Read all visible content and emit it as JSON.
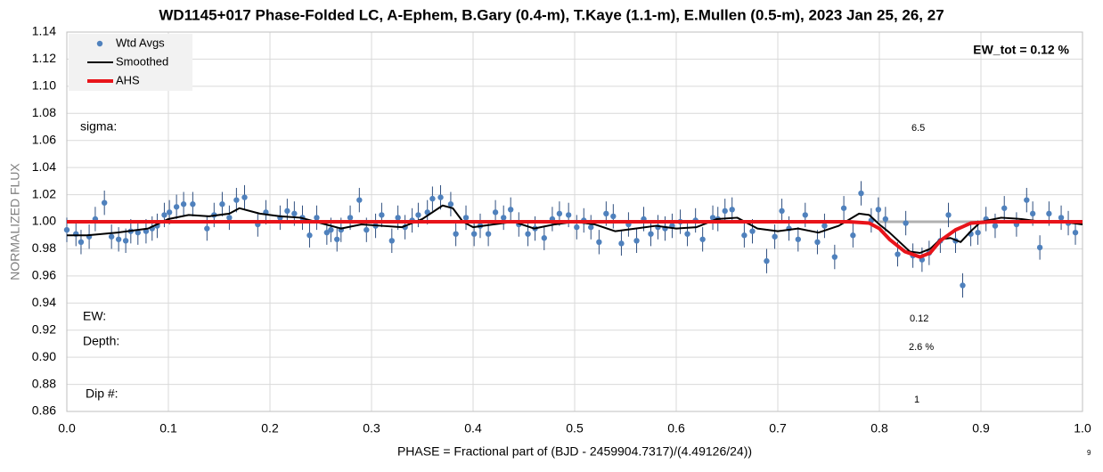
{
  "chart_data": {
    "type": "scatter",
    "title": "WD1145+017 Phase-Folded LC, A-Ephem, B.Gary (0.4-m), T.Kaye (1.1-m), E.Mullen (0.5-m), 2023 Jan 25, 26, 27",
    "xlabel": "PHASE = Fractional part of (BJD - 2459904.7317)/(4.49126/24))",
    "ylabel": "NORMALIZED FLUX",
    "xlim": [
      0,
      1
    ],
    "ylim": [
      0.86,
      1.14
    ],
    "xticks": [
      {
        "value": 0,
        "label": "0.0"
      },
      0.1,
      0.2,
      0.3,
      0.4,
      0.5,
      0.6,
      0.7,
      0.8,
      0.9,
      {
        "value": 1,
        "label": "1.0"
      }
    ],
    "yticks": [
      0.86,
      0.88,
      {
        "value": 0.9,
        "label": "0.90"
      },
      0.92,
      0.94,
      0.96,
      0.98,
      {
        "value": 1,
        "label": "1.00"
      },
      1.02,
      1.04,
      1.06,
      1.08,
      {
        "value": 1.1,
        "label": "1.10"
      },
      1.12,
      1.14
    ],
    "grid": true,
    "legend": "upper left",
    "baseline": 1,
    "annotations": {
      "ew_tot": "EW_tot = 0.12 %",
      "sigma": "sigma:",
      "sigma_value": "6.5",
      "ew": "EW:",
      "ew_value": "0.12",
      "depth": "Depth:",
      "depth_value": "2.6 %",
      "dip": "Dip #:",
      "dip_value": "1",
      "corner": "9"
    },
    "series": [
      {
        "name": "Wtd Avgs",
        "color": "#4f81bd",
        "error": 0.009,
        "x": [
          0.0,
          0.009,
          0.014,
          0.022,
          0.028,
          0.037,
          0.044,
          0.051,
          0.058,
          0.063,
          0.07,
          0.078,
          0.084,
          0.089,
          0.096,
          0.101,
          0.108,
          0.115,
          0.124,
          0.138,
          0.145,
          0.153,
          0.16,
          0.167,
          0.175,
          0.188,
          0.196,
          0.21,
          0.217,
          0.224,
          0.232,
          0.239,
          0.246,
          0.256,
          0.26,
          0.266,
          0.27,
          0.279,
          0.288,
          0.295,
          0.304,
          0.31,
          0.32,
          0.326,
          0.333,
          0.34,
          0.346,
          0.355,
          0.36,
          0.368,
          0.378,
          0.383,
          0.393,
          0.401,
          0.407,
          0.415,
          0.422,
          0.43,
          0.437,
          0.445,
          0.454,
          0.461,
          0.47,
          0.478,
          0.485,
          0.494,
          0.502,
          0.509,
          0.516,
          0.524,
          0.531,
          0.538,
          0.546,
          0.553,
          0.561,
          0.568,
          0.575,
          0.582,
          0.589,
          0.596,
          0.604,
          0.611,
          0.619,
          0.626,
          0.636,
          0.641,
          0.648,
          0.655,
          0.667,
          0.675,
          0.689,
          0.697,
          0.704,
          0.711,
          0.72,
          0.727,
          0.739,
          0.746,
          0.756,
          0.765,
          0.774,
          0.782,
          0.792,
          0.799,
          0.806,
          0.818,
          0.826,
          0.833,
          0.842,
          0.849,
          0.86,
          0.868,
          0.875,
          0.882,
          0.89,
          0.897,
          0.905,
          0.914,
          0.923,
          0.935,
          0.945,
          0.951,
          0.958,
          0.967,
          0.979,
          0.986,
          0.993
        ],
        "values": [
          0.994,
          0.991,
          0.985,
          0.989,
          1.002,
          1.014,
          0.989,
          0.987,
          0.986,
          0.993,
          0.992,
          0.993,
          0.995,
          0.997,
          1.005,
          1.007,
          1.011,
          1.013,
          1.013,
          0.995,
          1.005,
          1.013,
          1.003,
          1.016,
          1.018,
          0.998,
          1.007,
          1.003,
          1.008,
          1.006,
          1.003,
          0.99,
          1.003,
          0.992,
          0.994,
          0.987,
          0.994,
          1.003,
          1.016,
          0.994,
          0.997,
          1.005,
          0.986,
          1.003,
          0.996,
          1.001,
          1.005,
          1.007,
          1.017,
          1.018,
          1.013,
          0.991,
          1.003,
          0.991,
          0.997,
          0.991,
          1.007,
          1.003,
          1.009,
          0.998,
          0.991,
          0.995,
          0.988,
          1.002,
          1.006,
          1.005,
          0.996,
          1.001,
          0.996,
          0.985,
          1.006,
          1.004,
          0.984,
          0.998,
          0.986,
          1.002,
          0.991,
          0.996,
          0.995,
          0.997,
          1.0,
          0.991,
          1.001,
          0.987,
          1.003,
          1.002,
          1.008,
          1.009,
          0.99,
          0.993,
          0.971,
          0.989,
          1.008,
          0.995,
          0.987,
          1.005,
          0.985,
          0.997,
          0.974,
          1.01,
          0.99,
          1.021,
          1.001,
          1.009,
          1.002,
          0.976,
          0.999,
          0.975,
          0.972,
          0.977,
          0.986,
          1.005,
          0.986,
          0.953,
          0.991,
          0.992,
          1.002,
          0.997,
          1.01,
          0.998,
          1.016,
          1.006,
          0.981,
          1.006,
          1.003,
          0.999,
          0.992
        ]
      },
      {
        "name": "Smoothed",
        "color": "#000000",
        "line": true,
        "x": [
          0.0,
          0.02,
          0.05,
          0.08,
          0.1,
          0.12,
          0.14,
          0.16,
          0.17,
          0.19,
          0.21,
          0.23,
          0.25,
          0.27,
          0.29,
          0.31,
          0.33,
          0.35,
          0.37,
          0.38,
          0.39,
          0.4,
          0.42,
          0.44,
          0.46,
          0.48,
          0.5,
          0.52,
          0.54,
          0.56,
          0.58,
          0.6,
          0.62,
          0.64,
          0.66,
          0.68,
          0.7,
          0.72,
          0.74,
          0.76,
          0.78,
          0.79,
          0.8,
          0.81,
          0.82,
          0.83,
          0.84,
          0.85,
          0.86,
          0.87,
          0.88,
          0.89,
          0.9,
          0.92,
          0.94,
          0.96,
          0.98,
          1.0
        ],
        "values": [
          0.99,
          0.99,
          0.992,
          0.995,
          1.002,
          1.005,
          1.004,
          1.006,
          1.01,
          1.006,
          1.004,
          1.003,
          0.999,
          0.995,
          0.998,
          0.997,
          0.996,
          1.002,
          1.012,
          1.01,
          1.0,
          0.996,
          0.998,
          1.0,
          0.995,
          0.998,
          1.0,
          0.998,
          0.993,
          0.995,
          0.997,
          0.995,
          0.996,
          1.002,
          1.003,
          0.995,
          0.993,
          0.995,
          0.992,
          0.997,
          1.006,
          1.005,
          0.998,
          0.992,
          0.985,
          0.978,
          0.977,
          0.98,
          0.987,
          0.988,
          0.985,
          0.993,
          1.0,
          1.003,
          1.002,
          1.0,
          1.0,
          0.998
        ]
      },
      {
        "name": "AHS",
        "color": "#e8141a",
        "line": true,
        "width": 4,
        "x": [
          0.0,
          0.77,
          0.79,
          0.8,
          0.81,
          0.825,
          0.84,
          0.85,
          0.86,
          0.875,
          0.89,
          0.91,
          1.0
        ],
        "values": [
          1.0,
          1.0,
          0.999,
          0.995,
          0.987,
          0.978,
          0.974,
          0.977,
          0.986,
          0.994,
          0.999,
          1.0,
          1.0
        ]
      }
    ]
  }
}
